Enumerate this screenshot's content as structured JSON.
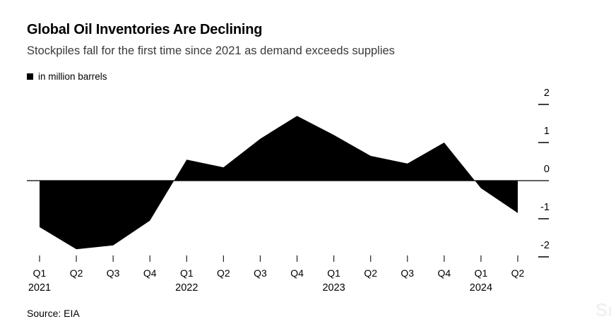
{
  "header": {
    "title": "Global Oil Inventories Are Declining",
    "subtitle": "Stockpiles fall for the first time since 2021 as demand exceeds supplies"
  },
  "legend": {
    "label": "in million barrels",
    "swatch_color": "#000000"
  },
  "chart_data": {
    "type": "area",
    "title": "Global Oil Inventories Are Declining",
    "subtitle": "Stockpiles fall for the first time since 2021 as demand exceeds supplies",
    "unit_label": "in million barrels",
    "categories": [
      "Q1 2021",
      "Q2 2021",
      "Q3 2021",
      "Q4 2021",
      "Q1 2022",
      "Q2 2022",
      "Q3 2022",
      "Q4 2022",
      "Q1 2023",
      "Q2 2023",
      "Q3 2023",
      "Q4 2023",
      "Q1 2024",
      "Q2 2024"
    ],
    "x_tick_labels": [
      "Q1",
      "Q2",
      "Q3",
      "Q4",
      "Q1",
      "Q2",
      "Q3",
      "Q4",
      "Q1",
      "Q2",
      "Q3",
      "Q4",
      "Q1",
      "Q2"
    ],
    "values": [
      -1.22,
      -1.8,
      -1.7,
      -1.05,
      0.55,
      0.35,
      1.1,
      1.7,
      1.2,
      0.65,
      0.45,
      1.0,
      -0.2,
      -0.85
    ],
    "years": [
      {
        "label": "2021",
        "index": 0
      },
      {
        "label": "2022",
        "index": 4
      },
      {
        "label": "2023",
        "index": 8
      },
      {
        "label": "2024",
        "index": 12
      }
    ],
    "y_ticks": [
      2,
      1,
      0,
      -1,
      -2
    ],
    "ylim": [
      -2.5,
      2.5
    ],
    "baseline": 0,
    "grid": false,
    "legend_position": "top-left",
    "series_color": "#000000",
    "axis_color": "#000000"
  },
  "footer": {
    "source": "Source: EIA",
    "watermark_fragment": "Sn"
  }
}
